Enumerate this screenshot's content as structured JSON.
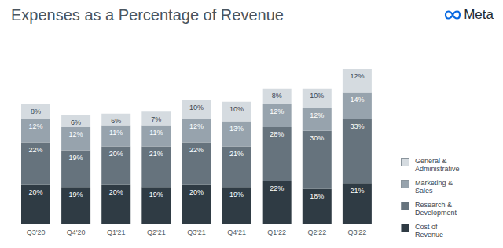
{
  "chart_data": {
    "type": "bar",
    "title": "Expenses as a Percentage of Revenue",
    "annotations": [
      "Meta"
    ],
    "categories": [
      "Q3'20",
      "Q4'20",
      "Q1'21",
      "Q2'21",
      "Q3'21",
      "Q4'21",
      "Q1'22",
      "Q2'22",
      "Q3'22"
    ],
    "stacked": true,
    "data_labels": true,
    "tick_labels": "x",
    "legend": "right",
    "series": [
      {
        "name": "Cost of Revenue",
        "color": "#2f3b44",
        "values": [
          20,
          19,
          20,
          19,
          20,
          19,
          22,
          18,
          21
        ],
        "value_labels": [
          "20%",
          "19%",
          "20%",
          "19%",
          "20%",
          "19%",
          "22%",
          "18%",
          "21%"
        ]
      },
      {
        "name": "Research & Development",
        "color": "#66737d",
        "values": [
          22,
          19,
          20,
          21,
          22,
          21,
          28,
          30,
          33
        ],
        "value_labels": [
          "22%",
          "19%",
          "20%",
          "21%",
          "22%",
          "21%",
          "28%",
          "30%",
          "33%"
        ]
      },
      {
        "name": "Marketing & Sales",
        "color": "#97a3ad",
        "values": [
          12,
          12,
          11,
          11,
          12,
          13,
          12,
          12,
          14
        ],
        "value_labels": [
          "12%",
          "12%",
          "11%",
          "11%",
          "12%",
          "13%",
          "12%",
          "12%",
          "14%"
        ]
      },
      {
        "name": "General & Administrative",
        "color": "#d5dbe0",
        "values": [
          8,
          6,
          6,
          7,
          10,
          10,
          8,
          10,
          12
        ],
        "value_labels": [
          "8%",
          "6%",
          "6%",
          "7%",
          "10%",
          "10%",
          "8%",
          "10%",
          "12%"
        ]
      }
    ]
  }
}
